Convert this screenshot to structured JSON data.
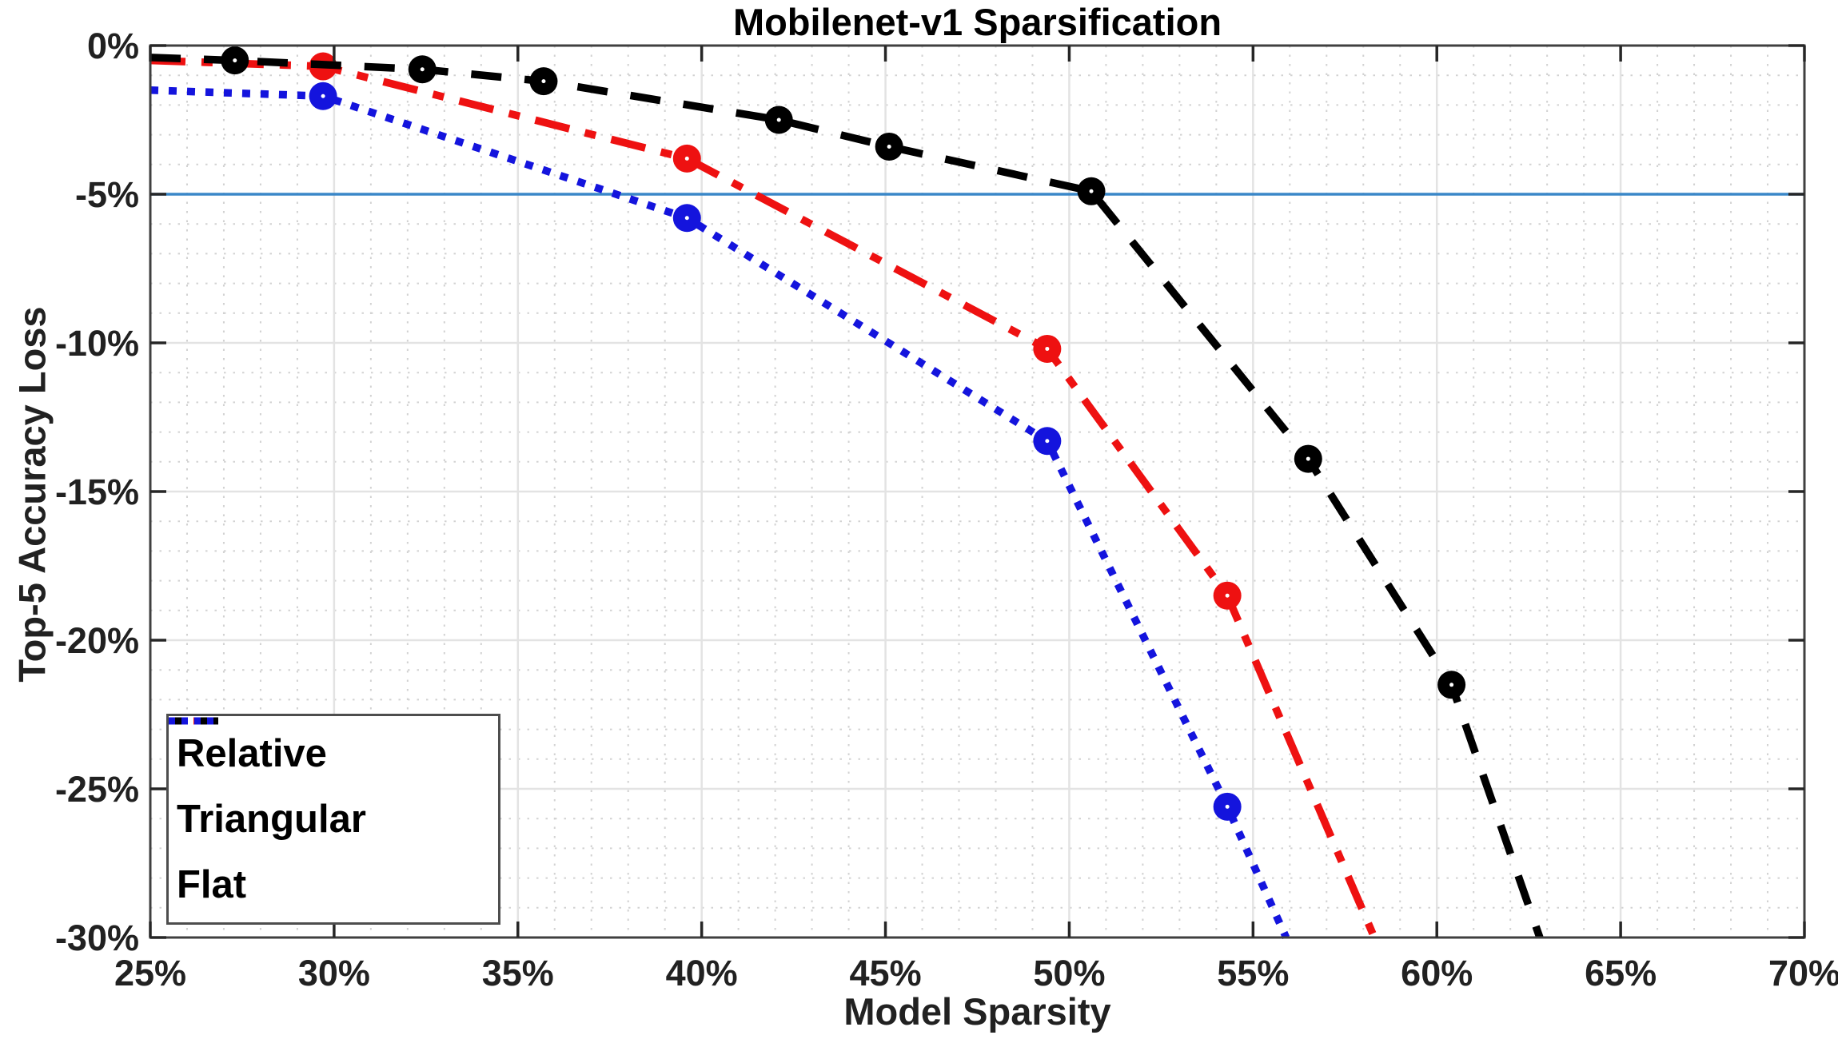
{
  "chart_data": {
    "type": "line",
    "title": "Mobilenet-v1 Sparsification",
    "xlabel": "Model Sparsity",
    "ylabel": "Top-5 Accuracy Loss",
    "xlim": [
      25,
      70
    ],
    "ylim": [
      -30,
      0
    ],
    "x_ticks": {
      "values": [
        25,
        30,
        35,
        40,
        45,
        50,
        55,
        60,
        65,
        70
      ],
      "labels": [
        "25%",
        "30%",
        "35%",
        "40%",
        "45%",
        "50%",
        "55%",
        "60%",
        "65%",
        "70%"
      ]
    },
    "y_ticks": {
      "values": [
        0,
        -5,
        -10,
        -15,
        -20,
        -25,
        -30
      ],
      "labels": [
        "0%",
        "-5%",
        "-10%",
        "-15%",
        "-20%",
        "-25%",
        "-30%"
      ]
    },
    "minor_grid_step_x": 1,
    "minor_grid_step_y": 1,
    "grid": true,
    "legend_position": "bottom-left",
    "reference_line": {
      "y": -5,
      "color": "#3a87c8"
    },
    "series": [
      {
        "name": "Relative",
        "color": "#ee1111",
        "style": "dashdot",
        "points": [
          [
            25,
            -0.5
          ],
          [
            29.7,
            -0.7
          ],
          [
            39.6,
            -3.8
          ],
          [
            49.4,
            -10.2
          ],
          [
            54.3,
            -18.5
          ],
          [
            58.3,
            -30
          ]
        ],
        "markers": [
          [
            29.7,
            -0.7
          ],
          [
            39.6,
            -3.8
          ],
          [
            49.4,
            -10.2
          ],
          [
            54.3,
            -18.5
          ]
        ]
      },
      {
        "name": "Triangular",
        "color": "#000000",
        "style": "dashed",
        "points": [
          [
            25,
            -0.4
          ],
          [
            27.3,
            -0.5
          ],
          [
            32.4,
            -0.8
          ],
          [
            35.7,
            -1.2
          ],
          [
            42.1,
            -2.5
          ],
          [
            45.1,
            -3.4
          ],
          [
            50.6,
            -4.9
          ],
          [
            56.5,
            -13.9
          ],
          [
            60.4,
            -21.5
          ],
          [
            62.8,
            -30
          ]
        ],
        "markers": [
          [
            27.3,
            -0.5
          ],
          [
            32.4,
            -0.8
          ],
          [
            35.7,
            -1.2
          ],
          [
            42.1,
            -2.5
          ],
          [
            45.1,
            -3.4
          ],
          [
            50.6,
            -4.9
          ],
          [
            56.5,
            -13.9
          ],
          [
            60.4,
            -21.5
          ]
        ]
      },
      {
        "name": "Flat",
        "color": "#1414dd",
        "style": "dotted",
        "points": [
          [
            25,
            -1.5
          ],
          [
            29.7,
            -1.7
          ],
          [
            39.6,
            -5.8
          ],
          [
            49.4,
            -13.3
          ],
          [
            54.3,
            -25.6
          ],
          [
            55.9,
            -30
          ]
        ],
        "markers": [
          [
            29.7,
            -1.7
          ],
          [
            39.6,
            -5.8
          ],
          [
            49.4,
            -13.3
          ],
          [
            54.3,
            -25.6
          ]
        ]
      }
    ]
  }
}
